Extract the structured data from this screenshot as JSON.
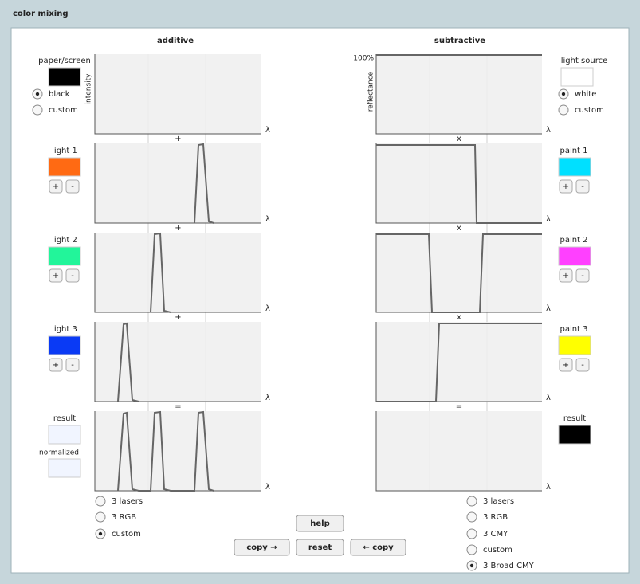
{
  "window_title": "color mixing",
  "buttons": {
    "help": "help",
    "copy_right": "copy →",
    "reset": "reset",
    "copy_left": "← copy"
  },
  "additive": {
    "heading": "additive",
    "axis_label": "intensity",
    "lambda": "λ",
    "operators": [
      "+",
      "+",
      "+",
      "="
    ],
    "paper": {
      "label": "paper/screen",
      "options": [
        "black",
        "custom"
      ]
    },
    "lights": [
      "light 1",
      "light 2",
      "light 3"
    ],
    "plus": "+",
    "minus": "-",
    "result": "result",
    "normalized": "normalized",
    "presets": [
      "3 lasers",
      "3 RGB",
      "custom"
    ]
  },
  "subtractive": {
    "heading": "subtractive",
    "axis_label": "reflectance",
    "top_label": "100%",
    "lambda": "λ",
    "operators": [
      "x",
      "x",
      "x",
      "="
    ],
    "light_source": {
      "label": "light source",
      "options": [
        "white",
        "custom"
      ]
    },
    "paints": [
      "paint 1",
      "paint 2",
      "paint 3"
    ],
    "plus": "+",
    "minus": "-",
    "result": "result",
    "presets": [
      "3 lasers",
      "3 RGB",
      "3 CMY",
      "custom",
      "3 Broad CMY"
    ]
  }
}
